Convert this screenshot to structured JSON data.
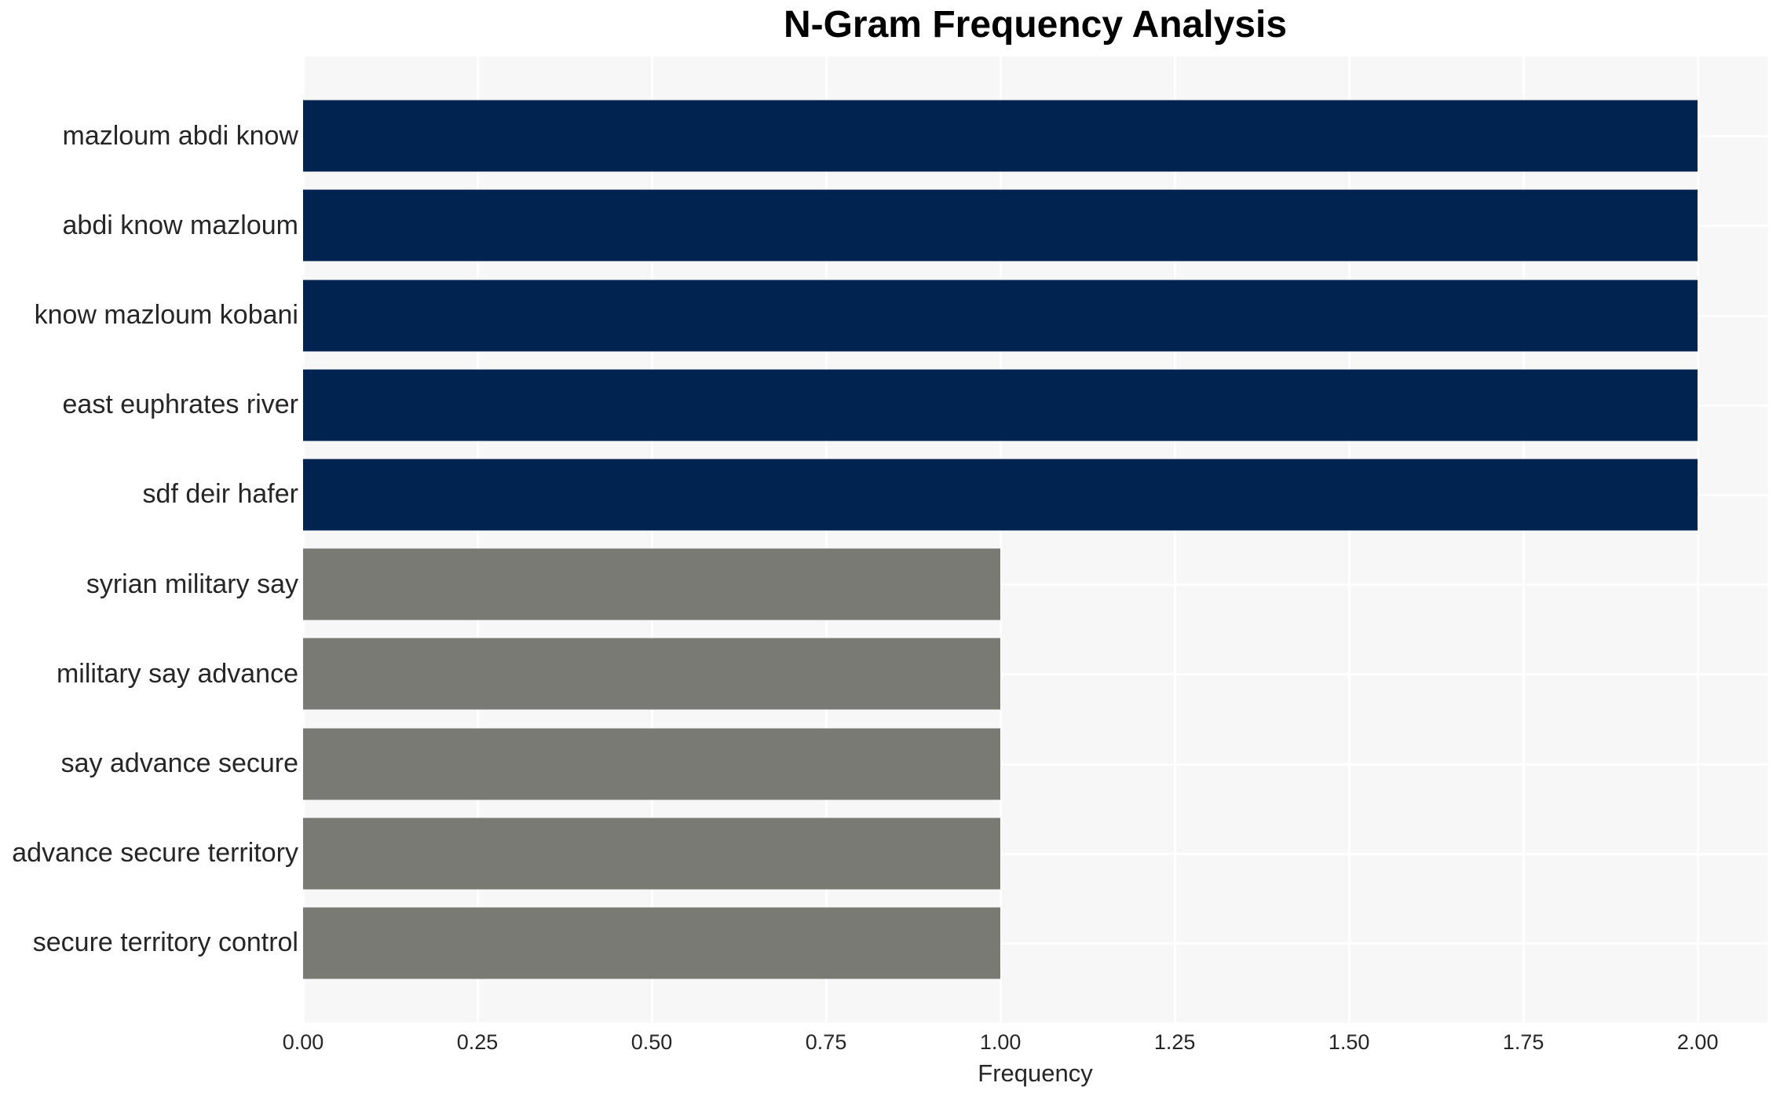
{
  "title": "N-Gram Frequency Analysis",
  "chart_data": {
    "type": "bar",
    "orientation": "horizontal",
    "title": "N-Gram Frequency Analysis",
    "xlabel": "Frequency",
    "ylabel": "",
    "categories": [
      "mazloum abdi know",
      "abdi know mazloum",
      "know mazloum kobani",
      "east euphrates river",
      "sdf deir hafer",
      "syrian military say",
      "military say advance",
      "say advance secure",
      "advance secure territory",
      "secure territory control"
    ],
    "values": [
      2,
      2,
      2,
      2,
      2,
      1,
      1,
      1,
      1,
      1
    ],
    "bar_colors": [
      "#012350",
      "#012350",
      "#012350",
      "#012350",
      "#012350",
      "#7a7a75",
      "#7a7a75",
      "#7a7a75",
      "#7a7a75",
      "#7a7a75"
    ],
    "xlim": [
      0,
      2.1
    ],
    "xticks": [
      {
        "label": "0.00",
        "value": 0.0
      },
      {
        "label": "0.25",
        "value": 0.25
      },
      {
        "label": "0.50",
        "value": 0.5
      },
      {
        "label": "0.75",
        "value": 0.75
      },
      {
        "label": "1.00",
        "value": 1.0
      },
      {
        "label": "1.25",
        "value": 1.25
      },
      {
        "label": "1.50",
        "value": 1.5
      },
      {
        "label": "1.75",
        "value": 1.75
      },
      {
        "label": "2.00",
        "value": 2.0
      }
    ],
    "grid": true,
    "legend_position": "none",
    "colors": {
      "high_frequency_bar": "#012350",
      "low_frequency_bar": "#7a7a75",
      "plot_background": "#f7f7f7",
      "gridline": "#ffffff",
      "text": "#262626",
      "title_text": "#000000"
    }
  }
}
